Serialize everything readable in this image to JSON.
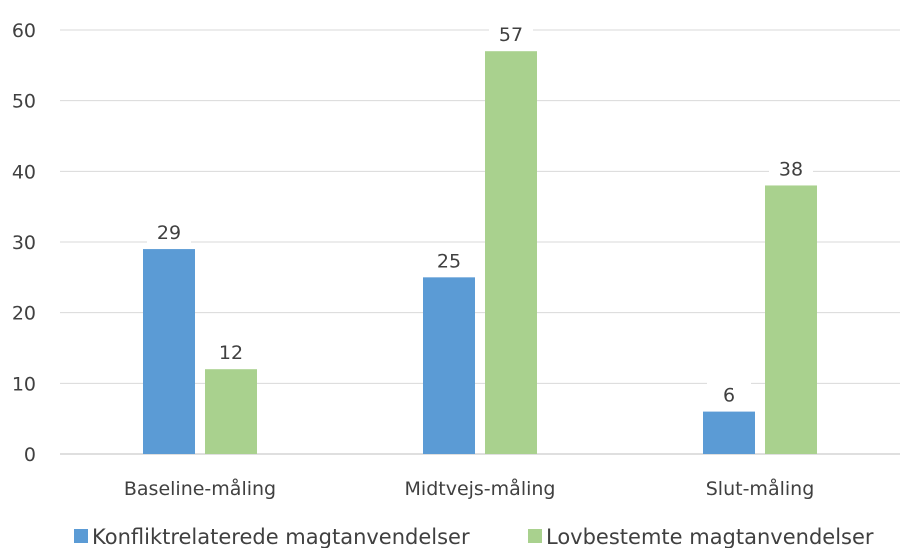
{
  "chart_data": {
    "type": "bar",
    "title": "",
    "xlabel": "",
    "ylabel": "",
    "categories": [
      "Baseline-måling",
      "Midtvejs-måling",
      "Slut-måling"
    ],
    "series": [
      {
        "name": "Konfliktrelaterede magtanvendelser",
        "color": "#5B9BD5",
        "values": [
          29,
          25,
          6
        ]
      },
      {
        "name": "Lovbestemte magtanvendelser",
        "color": "#A9D18E",
        "values": [
          12,
          57,
          38
        ]
      }
    ],
    "ylim": [
      0,
      60
    ],
    "yticks": [
      0,
      10,
      20,
      30,
      40,
      50,
      60
    ],
    "grid": true,
    "legend": "bottom",
    "data_labels": true
  }
}
